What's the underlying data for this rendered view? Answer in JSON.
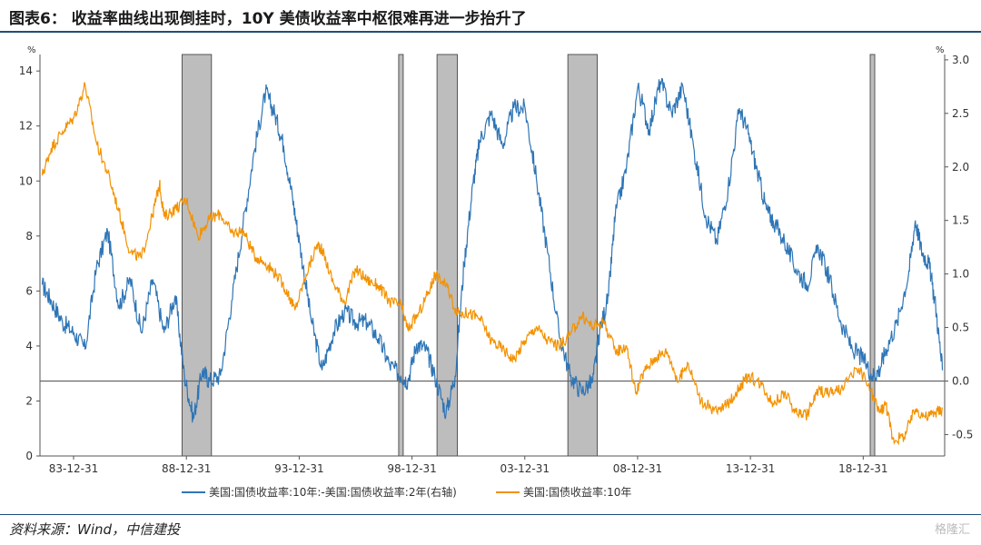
{
  "page": {
    "title": "图表6： 收益率曲线出现倒挂时，10Y 美债收益率中枢很难再进一步抬升了",
    "source": "资料来源：Wind，中信建投",
    "watermark": "格隆汇"
  },
  "chart_data": {
    "type": "line",
    "y_unit_left": "%",
    "y_unit_right": "%",
    "y_left_range": [
      0,
      14.6
    ],
    "y_left_ticks": [
      0,
      2,
      4,
      6,
      8,
      10,
      12,
      14
    ],
    "y_right_range": [
      -0.7,
      3.05
    ],
    "y_right_ticks": [
      "-0.5",
      "0.0",
      "0.5",
      "1.0",
      "1.5",
      "2.0",
      "2.5",
      "3.0"
    ],
    "x_range": [
      1982.5,
      2022.6
    ],
    "x_tick_labels": [
      "83-12-31",
      "88-12-31",
      "93-12-31",
      "98-12-31",
      "03-12-31",
      "08-12-31",
      "13-12-31",
      "18-12-31"
    ],
    "x_tick_years": [
      1983.99,
      1988.99,
      1993.99,
      1998.99,
      2003.99,
      2008.99,
      2013.99,
      2018.99
    ],
    "zero_line_right": 0.0,
    "inversion_periods": [
      [
        1988.8,
        1990.1
      ],
      [
        1998.4,
        1998.6
      ],
      [
        2000.1,
        2001.0
      ],
      [
        2005.9,
        2007.2
      ],
      [
        2019.3,
        2019.5
      ]
    ],
    "grid": false,
    "legend_position": "bottom",
    "series": [
      {
        "name": "美国:国债收益率:10年:-美国:国债收益率:2年(右轴)",
        "color": "#2e75b6",
        "axis": "right",
        "x": [
          1982.6,
          1983.0,
          1983.5,
          1984.0,
          1984.5,
          1985.0,
          1985.5,
          1986.0,
          1986.5,
          1987.0,
          1987.5,
          1988.0,
          1988.5,
          1988.9,
          1989.3,
          1989.7,
          1990.0,
          1990.5,
          1991.0,
          1991.5,
          1992.0,
          1992.5,
          1992.9,
          1993.3,
          1993.7,
          1994.0,
          1994.5,
          1995.0,
          1995.5,
          1996.0,
          1996.5,
          1997.0,
          1997.5,
          1998.0,
          1998.5,
          1998.8,
          1999.2,
          1999.6,
          2000.0,
          2000.5,
          2000.9,
          2001.3,
          2001.7,
          2002.0,
          2002.5,
          2003.0,
          2003.5,
          2004.0,
          2004.5,
          2005.0,
          2005.5,
          2006.0,
          2006.5,
          2007.0,
          2007.3,
          2007.7,
          2008.0,
          2008.5,
          2009.0,
          2009.5,
          2010.0,
          2010.5,
          2011.0,
          2011.5,
          2012.0,
          2012.5,
          2013.0,
          2013.5,
          2013.9,
          2014.3,
          2014.7,
          2015.0,
          2015.5,
          2016.0,
          2016.5,
          2017.0,
          2017.5,
          2018.0,
          2018.5,
          2019.0,
          2019.4,
          2019.7,
          2020.0,
          2020.5,
          2021.0,
          2021.3,
          2021.6,
          2021.9,
          2022.2,
          2022.5
        ],
        "values": [
          0.9,
          0.75,
          0.55,
          0.45,
          0.3,
          1.05,
          1.4,
          0.7,
          0.95,
          0.45,
          0.95,
          0.45,
          0.8,
          0.05,
          -0.35,
          0.1,
          0.0,
          0.05,
          0.75,
          1.45,
          2.15,
          2.7,
          2.5,
          2.2,
          1.7,
          1.3,
          0.6,
          0.1,
          0.45,
          0.65,
          0.55,
          0.55,
          0.4,
          0.15,
          0.05,
          0.0,
          0.35,
          0.3,
          0.05,
          -0.3,
          0.05,
          1.1,
          1.85,
          2.25,
          2.5,
          2.2,
          2.55,
          2.55,
          1.9,
          1.2,
          0.45,
          0.05,
          -0.1,
          0.0,
          0.45,
          0.8,
          1.55,
          2.0,
          2.75,
          2.35,
          2.8,
          2.5,
          2.75,
          2.15,
          1.55,
          1.3,
          1.8,
          2.55,
          2.3,
          1.95,
          1.6,
          1.5,
          1.3,
          1.05,
          0.9,
          1.25,
          0.95,
          0.55,
          0.3,
          0.2,
          0.05,
          0.1,
          0.3,
          0.55,
          1.0,
          1.5,
          1.2,
          1.1,
          0.7,
          0.1
        ]
      },
      {
        "name": "美国:国债收益率:10年",
        "color": "#f39200",
        "axis": "left",
        "x": [
          1982.6,
          1983.0,
          1983.5,
          1984.0,
          1984.5,
          1985.0,
          1985.5,
          1986.0,
          1986.5,
          1987.0,
          1987.5,
          1987.8,
          1988.0,
          1988.5,
          1989.0,
          1989.5,
          1990.0,
          1990.5,
          1991.0,
          1991.5,
          1992.0,
          1992.5,
          1993.0,
          1993.5,
          1993.8,
          1994.3,
          1994.8,
          1995.0,
          1995.5,
          1996.0,
          1996.5,
          1997.0,
          1997.5,
          1998.0,
          1998.5,
          1998.8,
          1999.3,
          1999.8,
          2000.0,
          2000.5,
          2001.0,
          2001.5,
          2002.0,
          2002.5,
          2003.0,
          2003.5,
          2004.0,
          2004.5,
          2005.0,
          2005.5,
          2006.0,
          2006.5,
          2007.0,
          2007.5,
          2008.0,
          2008.5,
          2008.9,
          2009.3,
          2009.8,
          2010.3,
          2010.8,
          2011.2,
          2011.8,
          2012.5,
          2013.0,
          2013.5,
          2013.9,
          2014.5,
          2015.0,
          2015.5,
          2016.0,
          2016.5,
          2017.0,
          2017.5,
          2018.0,
          2018.8,
          2019.3,
          2019.7,
          2020.0,
          2020.3,
          2020.8,
          2021.3,
          2021.8,
          2022.2,
          2022.5
        ],
        "values": [
          10.2,
          11.2,
          11.8,
          12.3,
          13.5,
          11.4,
          10.3,
          8.9,
          7.4,
          7.2,
          8.8,
          9.9,
          8.7,
          9.0,
          9.3,
          8.0,
          8.6,
          8.8,
          8.1,
          8.2,
          7.3,
          7.0,
          6.6,
          5.9,
          5.3,
          6.6,
          7.7,
          7.5,
          6.3,
          5.6,
          6.8,
          6.4,
          6.2,
          5.6,
          5.5,
          4.6,
          5.2,
          6.1,
          6.6,
          6.2,
          5.2,
          5.2,
          5.0,
          4.2,
          3.9,
          3.5,
          4.2,
          4.7,
          4.2,
          4.0,
          4.4,
          5.1,
          4.7,
          4.9,
          3.8,
          4.0,
          2.3,
          3.1,
          3.6,
          3.8,
          2.7,
          3.4,
          2.0,
          1.6,
          1.9,
          2.5,
          2.9,
          2.6,
          1.9,
          2.3,
          1.6,
          1.5,
          2.4,
          2.3,
          2.4,
          3.2,
          2.4,
          1.6,
          1.9,
          0.6,
          0.7,
          1.7,
          1.4,
          1.6,
          1.7
        ]
      }
    ]
  }
}
